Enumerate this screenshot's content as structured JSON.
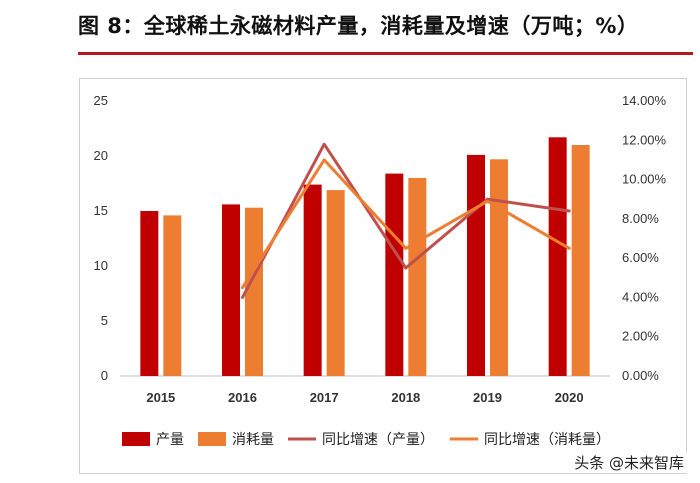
{
  "figure": {
    "title": "图 8：全球稀土永磁材料产量，消耗量及增速（万吨；%）",
    "watermark": "头条 @未来智库"
  },
  "chart_data": {
    "type": "bar",
    "categories": [
      "2015",
      "2016",
      "2017",
      "2018",
      "2019",
      "2020"
    ],
    "series": [
      {
        "name": "产量",
        "type": "bar",
        "axis": "left",
        "color": "#c00000",
        "values": [
          15.0,
          15.6,
          17.4,
          18.4,
          20.1,
          21.7
        ]
      },
      {
        "name": "消耗量",
        "type": "bar",
        "axis": "left",
        "color": "#ed7d31",
        "values": [
          14.6,
          15.3,
          16.9,
          18.0,
          19.7,
          21.0
        ]
      },
      {
        "name": "同比增速（产量）",
        "type": "line",
        "axis": "right",
        "color": "#c0504d",
        "values": [
          null,
          4.0,
          11.8,
          5.5,
          9.0,
          8.4
        ]
      },
      {
        "name": "同比增速（消耗量）",
        "type": "line",
        "axis": "right",
        "color": "#ed7d31",
        "values": [
          null,
          4.5,
          11.0,
          6.5,
          8.9,
          6.5
        ]
      }
    ],
    "y_left": {
      "min": 0,
      "max": 25,
      "step": 5,
      "ticks": [
        "0",
        "5",
        "10",
        "15",
        "20",
        "25"
      ]
    },
    "y_right": {
      "min": 0,
      "max": 14,
      "step": 2,
      "ticks": [
        "0.00%",
        "2.00%",
        "4.00%",
        "6.00%",
        "8.00%",
        "10.00%",
        "12.00%",
        "14.00%"
      ]
    },
    "grid": false,
    "legend_position": "bottom"
  }
}
